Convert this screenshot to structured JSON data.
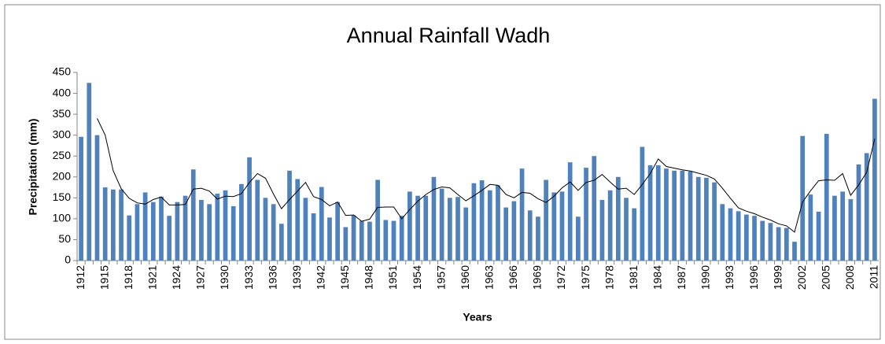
{
  "chart_data": {
    "type": "bar",
    "title": "Annual Rainfall Wadh",
    "x_label": "Years",
    "y_label": "Precipitation (mm)",
    "categories": [
      "1912",
      null,
      null,
      "1915",
      null,
      null,
      "1918",
      null,
      null,
      "1921",
      null,
      null,
      "1924",
      null,
      null,
      "1927",
      null,
      null,
      "1930",
      null,
      null,
      "1933",
      null,
      null,
      "1936",
      null,
      null,
      "1939",
      null,
      null,
      "1942",
      null,
      null,
      "1945",
      null,
      null,
      "1948",
      null,
      null,
      "1951",
      null,
      null,
      "1954",
      null,
      null,
      "1957",
      null,
      null,
      "1960",
      null,
      null,
      "1963",
      null,
      null,
      "1966",
      null,
      null,
      "1969",
      null,
      null,
      "1972",
      null,
      null,
      "1975",
      null,
      null,
      "1978",
      null,
      null,
      "1981",
      null,
      null,
      "1984",
      null,
      null,
      "1987",
      null,
      null,
      "1990",
      null,
      null,
      "1993",
      null,
      null,
      "1996",
      null,
      null,
      "1999",
      null,
      null,
      "2002",
      null,
      null,
      "2005",
      null,
      null,
      "2008",
      null,
      null,
      "2011"
    ],
    "values": [
      296,
      425,
      300,
      175,
      170,
      170,
      108,
      135,
      163,
      140,
      153,
      107,
      140,
      155,
      218,
      145,
      135,
      160,
      168,
      130,
      183,
      247,
      193,
      150,
      135,
      88,
      215,
      195,
      150,
      113,
      176,
      103,
      140,
      80,
      108,
      95,
      93,
      193,
      97,
      95,
      107,
      165,
      155,
      155,
      200,
      172,
      150,
      152,
      127,
      185,
      192,
      168,
      180,
      127,
      142,
      220,
      120,
      105,
      193,
      163,
      165,
      235,
      105,
      222,
      250,
      145,
      168,
      200,
      150,
      125,
      272,
      228,
      228,
      220,
      215,
      215,
      213,
      200,
      198,
      187,
      135,
      125,
      118,
      110,
      107,
      95,
      90,
      80,
      78,
      45,
      298,
      158,
      117,
      303,
      155,
      165,
      147,
      230,
      257,
      387
    ],
    "moving_average": [
      null,
      null,
      340,
      300,
      215,
      172,
      149,
      138,
      135,
      146,
      152,
      133,
      133,
      134,
      171,
      173,
      166,
      147,
      154,
      153,
      160,
      187,
      208,
      197,
      159,
      124,
      146,
      166,
      187,
      153,
      146,
      131,
      140,
      108,
      109,
      94,
      99,
      127,
      128,
      128,
      100,
      122,
      142,
      158,
      170,
      176,
      174,
      158,
      143,
      155,
      168,
      182,
      180,
      158,
      150,
      163,
      161,
      148,
      139,
      154,
      174,
      188,
      168,
      187,
      192,
      206,
      188,
      171,
      173,
      158,
      182,
      208,
      243,
      225,
      221,
      217,
      214,
      209,
      204,
      195,
      173,
      149,
      126,
      118,
      112,
      104,
      97,
      88,
      83,
      68,
      140,
      167,
      191,
      193,
      192,
      208,
      156,
      181,
      211,
      291
    ],
    "color": "#4f81bd",
    "line_color": "#000000",
    "ylim": [
      0,
      450
    ],
    "yticks": [
      0,
      50,
      100,
      150,
      200,
      250,
      300,
      350,
      400,
      450
    ],
    "grid": false
  }
}
